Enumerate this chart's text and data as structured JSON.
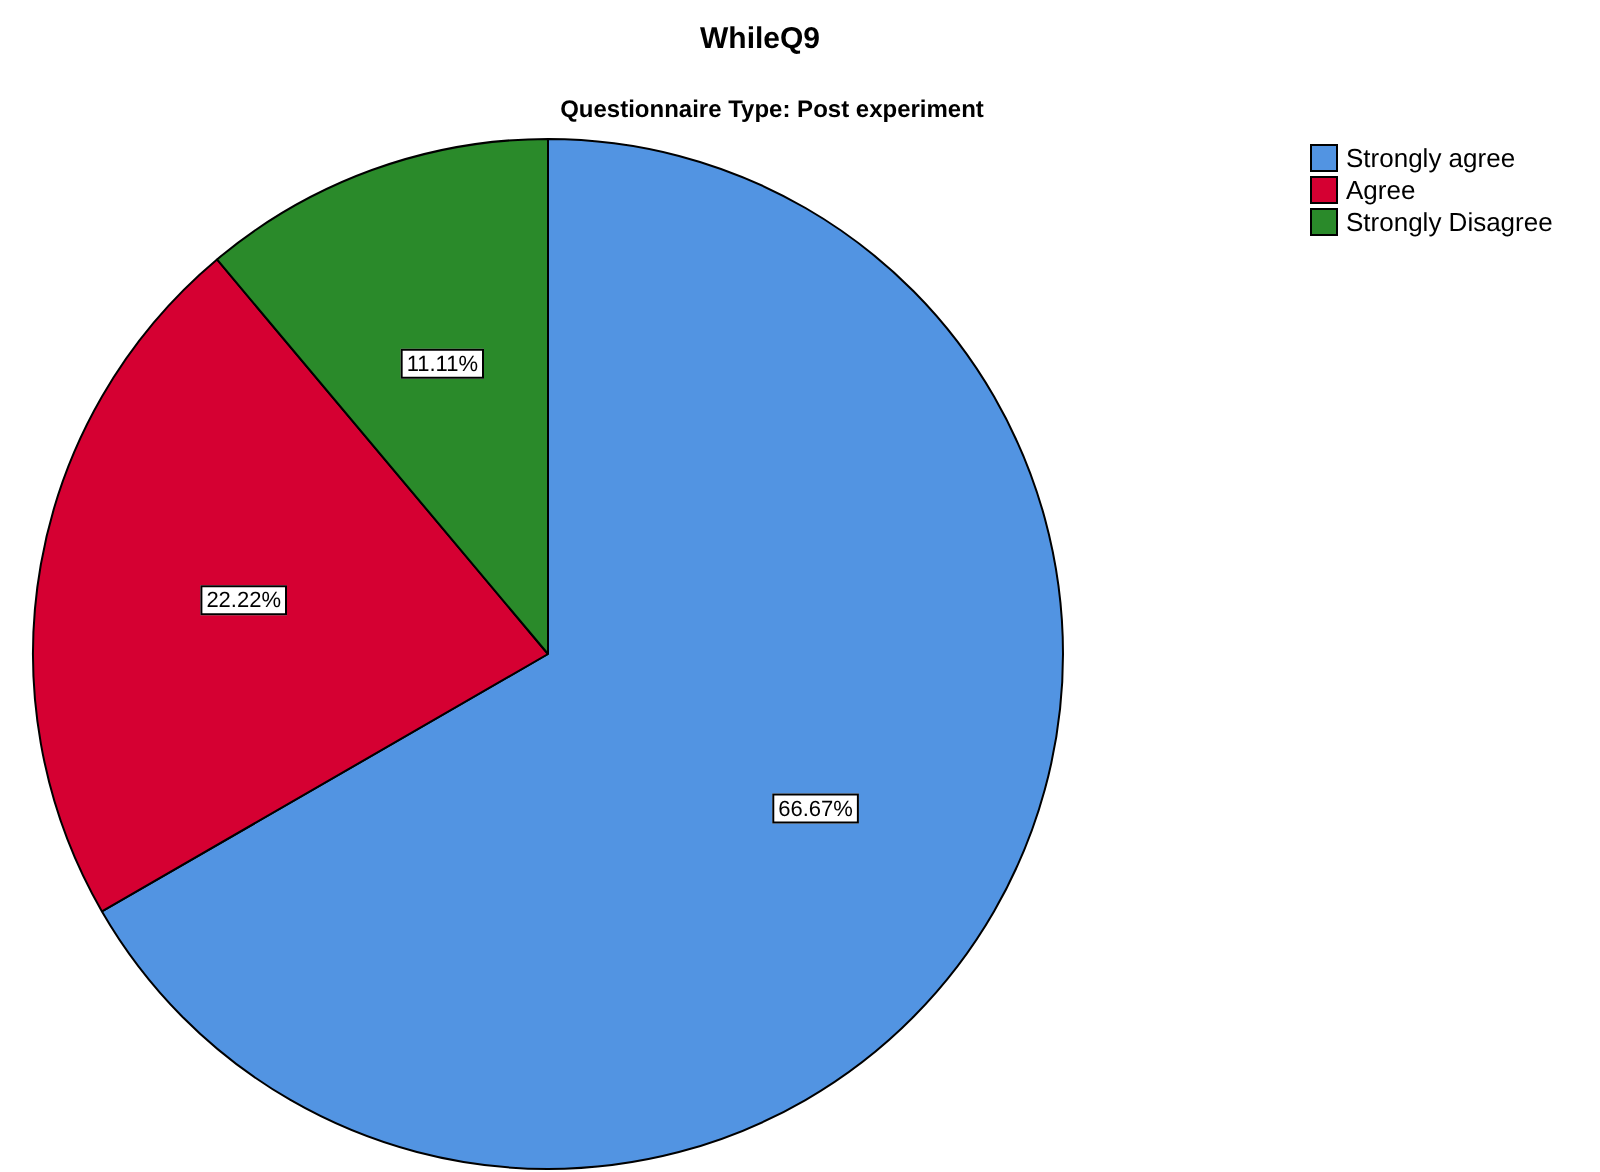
{
  "chart_data": {
    "type": "pie",
    "title": "WhileQ9",
    "subtitle": "Questionnaire Type: Post experiment",
    "categories": [
      "Strongly agree",
      "Agree",
      "Strongly Disagree"
    ],
    "values": [
      66.67,
      22.22,
      11.11
    ],
    "value_labels": [
      "66.67%",
      "22.22%",
      "11.11%"
    ],
    "colors": [
      "#5294e2",
      "#d50032",
      "#2a8a2a"
    ],
    "legend": "top right"
  }
}
